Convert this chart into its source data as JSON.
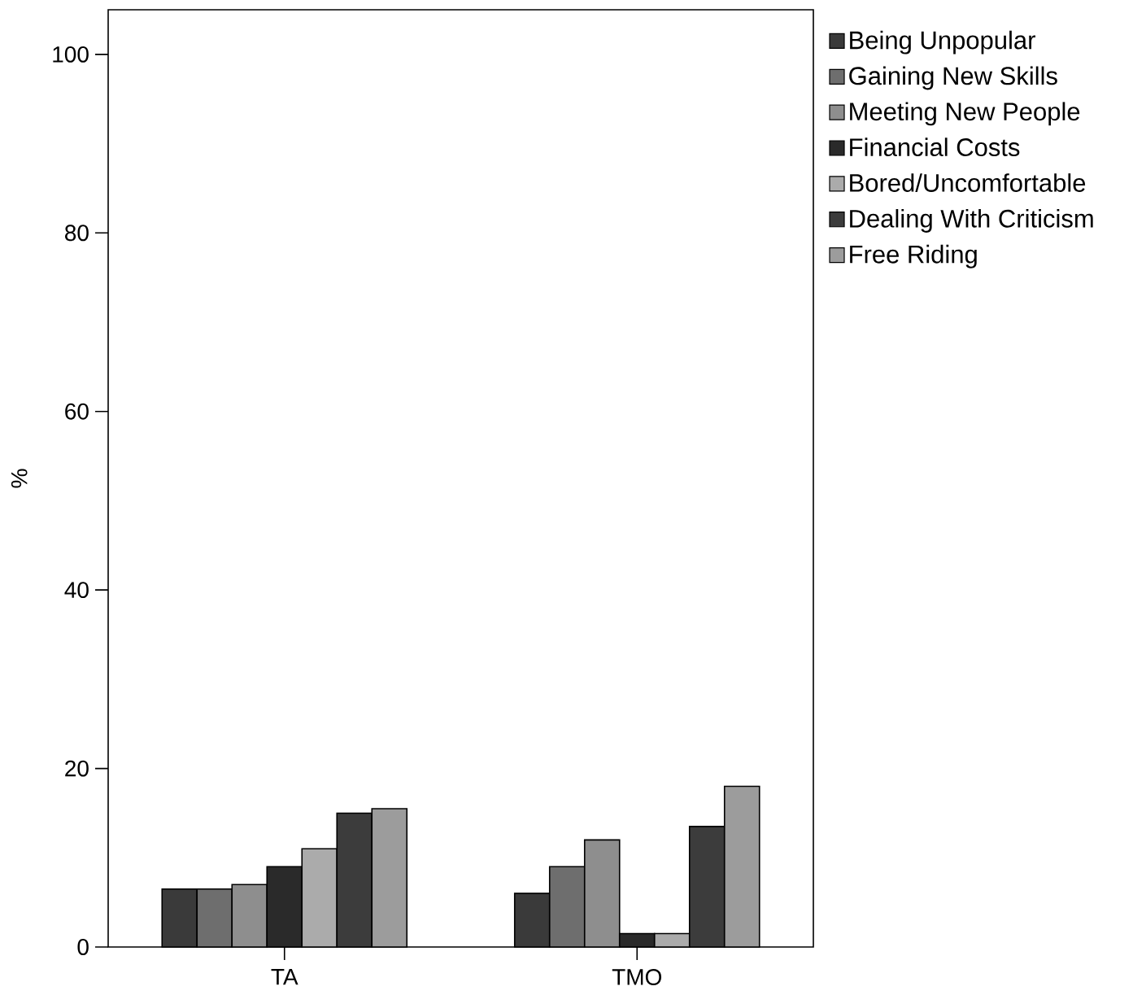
{
  "chart_data": {
    "type": "bar",
    "ylabel": "%",
    "categories": [
      "TA",
      "TMO"
    ],
    "series": [
      {
        "name": "Being Unpopular",
        "color": "#3a3a3a",
        "values": [
          6.5,
          6
        ]
      },
      {
        "name": "Gaining New Skills",
        "color": "#6e6e6e",
        "values": [
          6.5,
          9
        ]
      },
      {
        "name": "Meeting New People",
        "color": "#8e8e8e",
        "values": [
          7,
          12
        ]
      },
      {
        "name": "Financial Costs",
        "color": "#2a2a2a",
        "values": [
          9,
          1.5
        ]
      },
      {
        "name": "Bored/Uncomfortable",
        "color": "#ababab",
        "values": [
          11,
          1.5
        ]
      },
      {
        "name": "Dealing With Criticism",
        "color": "#3c3c3c",
        "values": [
          15,
          13.5
        ]
      },
      {
        "name": "Free Riding",
        "color": "#9c9c9c",
        "values": [
          15.5,
          18
        ]
      }
    ],
    "ylim": [
      0,
      105
    ],
    "yticks": [
      0,
      20,
      40,
      60,
      80,
      100
    ],
    "grid": false,
    "legend": "top right"
  }
}
